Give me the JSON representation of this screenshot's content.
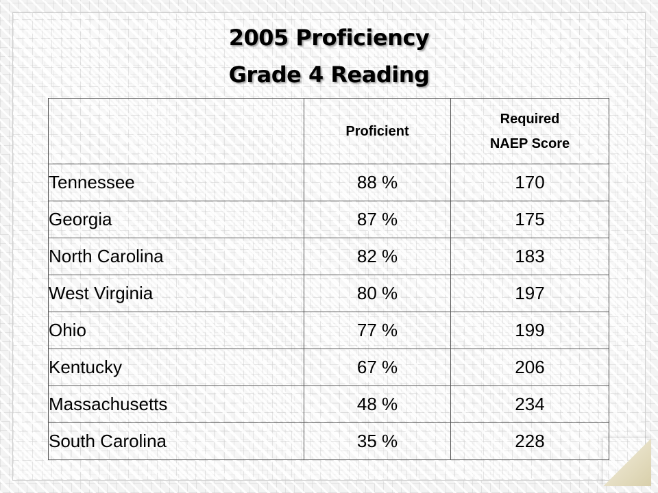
{
  "title": {
    "line1": "2005 Proficiency",
    "line2": "Grade 4 Reading"
  },
  "table": {
    "headers": {
      "state": "",
      "proficient": "Proficient",
      "required_line1": "Required",
      "required_line2": "NAEP Score"
    },
    "rows": [
      {
        "state": "Tennessee",
        "proficient": "88 %",
        "score": "170"
      },
      {
        "state": "Georgia",
        "proficient": "87 %",
        "score": "175"
      },
      {
        "state": "North Carolina",
        "proficient": "82 %",
        "score": "183"
      },
      {
        "state": "West Virginia",
        "proficient": "80 %",
        "score": "197"
      },
      {
        "state": "Ohio",
        "proficient": "77 %",
        "score": "199"
      },
      {
        "state": "Kentucky",
        "proficient": "67 %",
        "score": "206"
      },
      {
        "state": "Massachusetts",
        "proficient": "48 %",
        "score": "234"
      },
      {
        "state": "South Carolina",
        "proficient": "35 %",
        "score": "228"
      }
    ]
  },
  "colors": {
    "background": "#f3f3f3",
    "text": "#000000",
    "border": "#555555",
    "page_curl": "#e7e0c6"
  }
}
